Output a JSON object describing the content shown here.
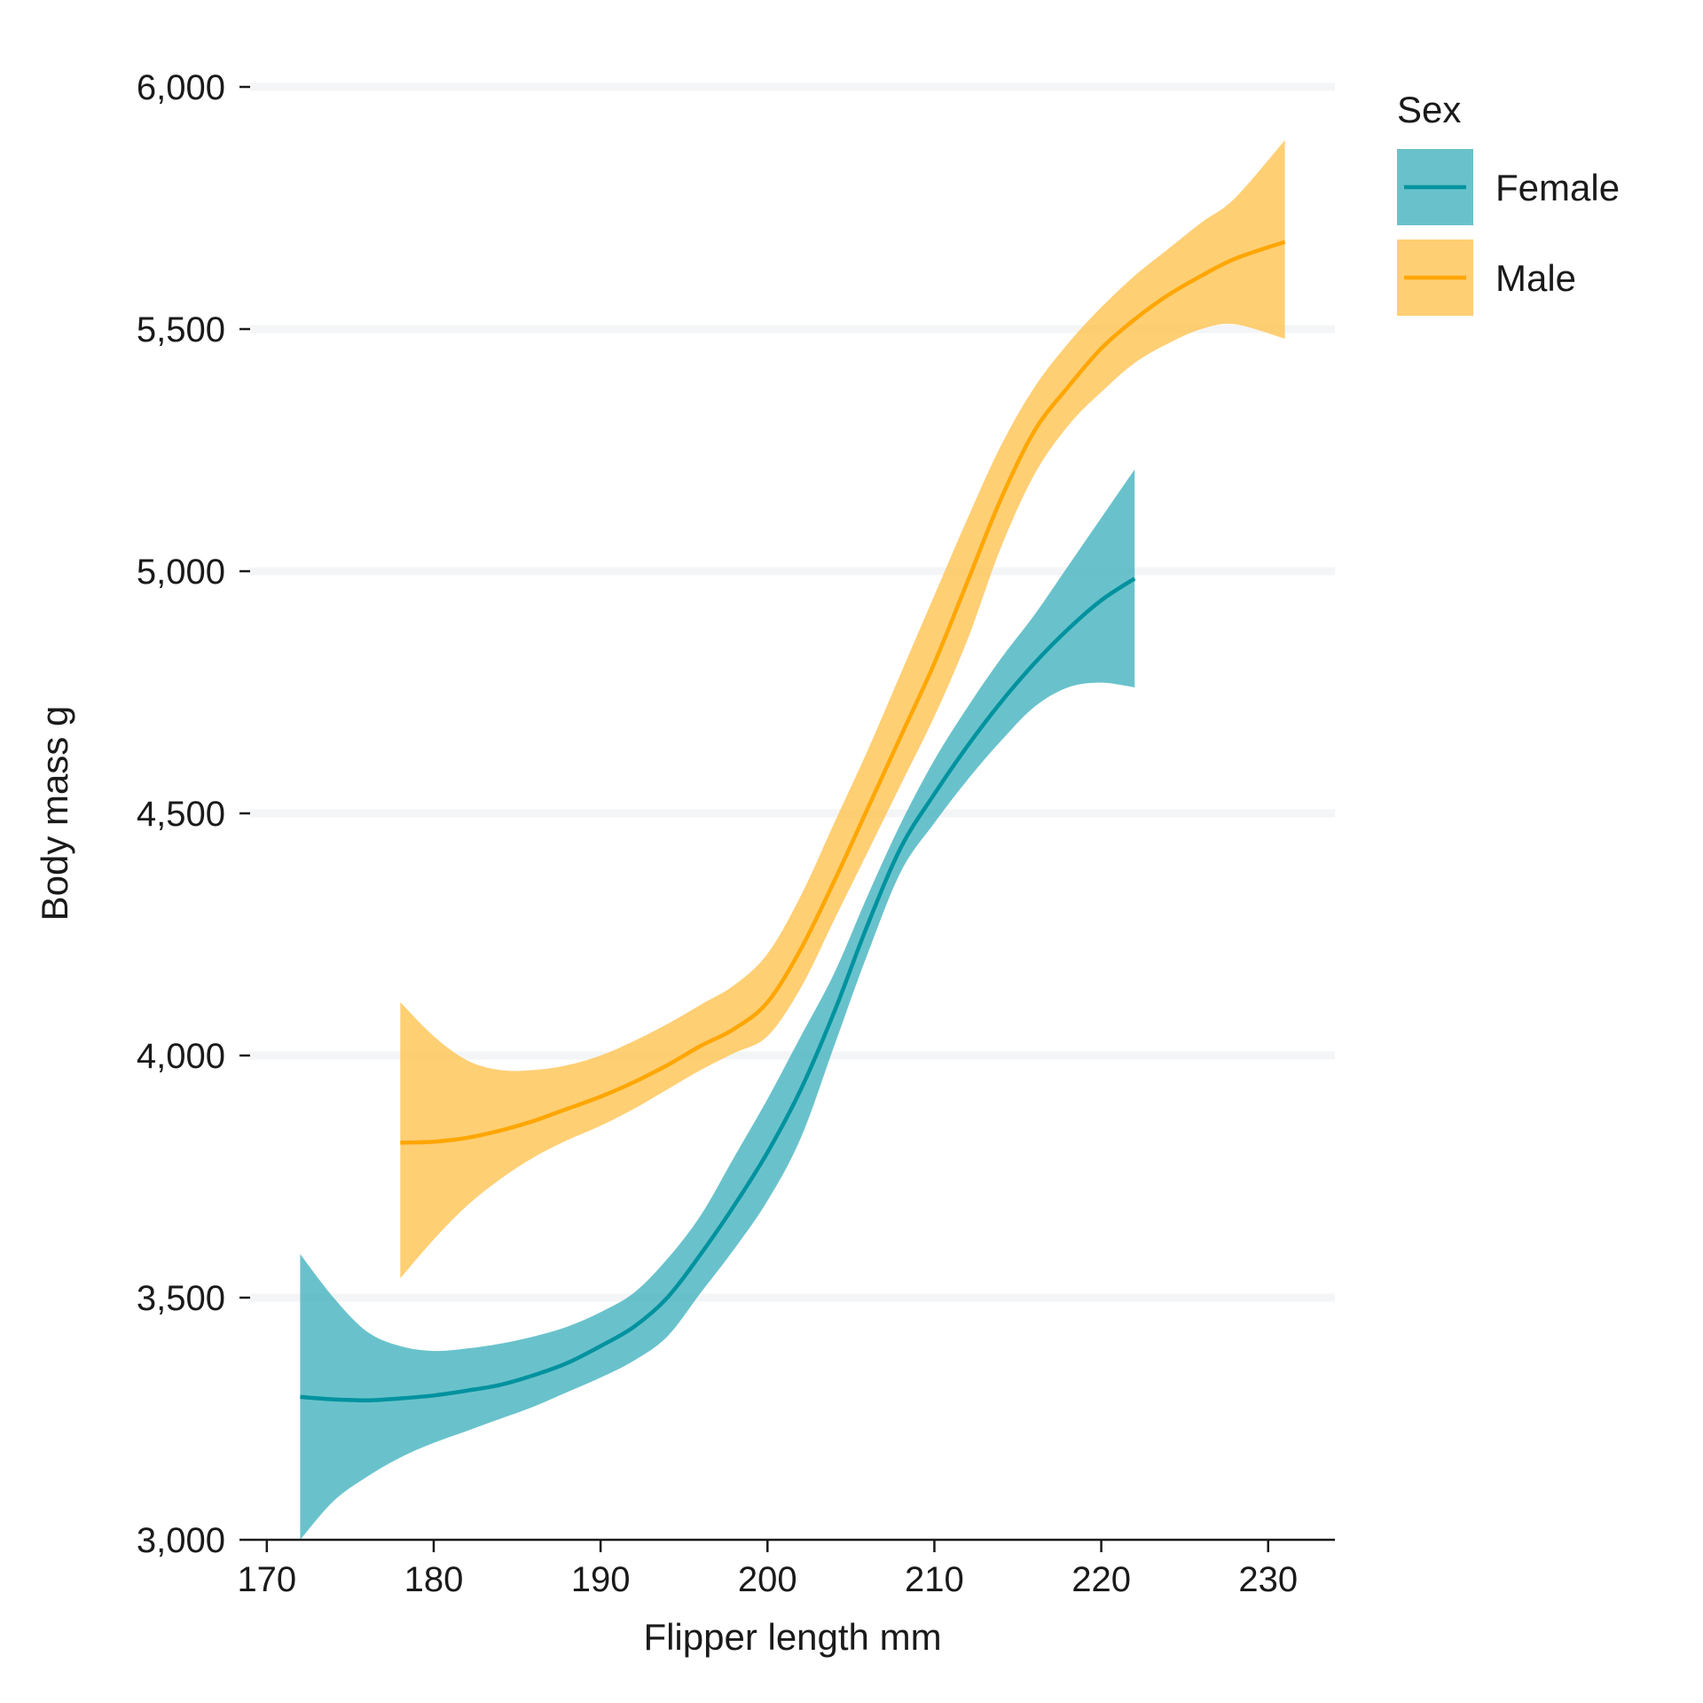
{
  "chart_data": {
    "type": "line",
    "title": "",
    "xlabel": "Flipper length mm",
    "ylabel": "Body mass g",
    "xlim": [
      169,
      234
    ],
    "ylim": [
      3000,
      6000
    ],
    "x_ticks": [
      170,
      180,
      190,
      200,
      210,
      220,
      230
    ],
    "x_tick_labels": [
      "170",
      "180",
      "190",
      "200",
      "210",
      "220",
      "230"
    ],
    "y_ticks": [
      3000,
      3500,
      4000,
      4500,
      5000,
      5500,
      6000
    ],
    "y_tick_labels": [
      "3,000",
      "3,500",
      "4,000",
      "4,500",
      "5,000",
      "5,500",
      "6,000"
    ],
    "grid": "horizontal",
    "legend": {
      "title": "Sex",
      "placement": "right",
      "entries": [
        "Female",
        "Male"
      ]
    },
    "series": [
      {
        "name": "Female",
        "color": "#00929f",
        "band_color": "#3fb1bd",
        "x": [
          172,
          174,
          176,
          178,
          180,
          182,
          184,
          186,
          188,
          190,
          192,
          194,
          196,
          198,
          200,
          202,
          204,
          206,
          208,
          210,
          212,
          214,
          216,
          218,
          220,
          222
        ],
        "y": [
          3295,
          3290,
          3288,
          3292,
          3298,
          3308,
          3320,
          3340,
          3365,
          3400,
          3440,
          3500,
          3590,
          3690,
          3800,
          3930,
          4090,
          4270,
          4430,
          4540,
          4640,
          4730,
          4810,
          4880,
          4940,
          4985
        ],
        "lower": [
          3000,
          3080,
          3130,
          3170,
          3200,
          3225,
          3250,
          3275,
          3305,
          3335,
          3370,
          3420,
          3510,
          3600,
          3700,
          3830,
          4020,
          4210,
          4380,
          4480,
          4570,
          4650,
          4720,
          4760,
          4770,
          4760
        ],
        "upper": [
          3590,
          3500,
          3430,
          3400,
          3390,
          3395,
          3405,
          3420,
          3440,
          3470,
          3510,
          3580,
          3670,
          3790,
          3910,
          4040,
          4170,
          4330,
          4480,
          4610,
          4720,
          4820,
          4910,
          5010,
          5110,
          5210
        ]
      },
      {
        "name": "Male",
        "color": "#ffa600",
        "band_color": "#ffc14d",
        "x": [
          178,
          180,
          182,
          184,
          186,
          188,
          190,
          192,
          194,
          196,
          198,
          200,
          202,
          204,
          206,
          208,
          210,
          212,
          214,
          216,
          218,
          220,
          222,
          224,
          226,
          228,
          231
        ],
        "y": [
          3820,
          3822,
          3830,
          3845,
          3865,
          3890,
          3915,
          3945,
          3980,
          4020,
          4055,
          4110,
          4220,
          4360,
          4510,
          4660,
          4810,
          4980,
          5150,
          5290,
          5380,
          5460,
          5520,
          5570,
          5610,
          5645,
          5680
        ],
        "lower": [
          3540,
          3620,
          3690,
          3745,
          3790,
          3825,
          3855,
          3890,
          3930,
          3970,
          4005,
          4040,
          4140,
          4280,
          4420,
          4560,
          4700,
          4860,
          5050,
          5200,
          5300,
          5370,
          5430,
          5470,
          5500,
          5510,
          5480
        ],
        "upper": [
          4110,
          4040,
          3990,
          3970,
          3970,
          3980,
          4000,
          4030,
          4065,
          4105,
          4145,
          4210,
          4330,
          4480,
          4630,
          4790,
          4950,
          5110,
          5260,
          5380,
          5470,
          5545,
          5610,
          5665,
          5720,
          5770,
          5890
        ]
      }
    ]
  }
}
